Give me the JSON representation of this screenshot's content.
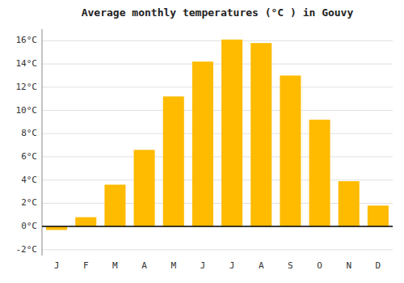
{
  "chart_data": {
    "type": "bar",
    "title": "Average monthly temperatures (°C ) in Gouvy",
    "categories": [
      "J",
      "F",
      "M",
      "A",
      "M",
      "J",
      "J",
      "A",
      "S",
      "O",
      "N",
      "D"
    ],
    "values": [
      -0.3,
      0.8,
      3.6,
      6.6,
      11.2,
      14.2,
      16.1,
      15.8,
      13.0,
      9.2,
      3.9,
      1.8
    ],
    "color": "#FFBB00",
    "ylim": [
      -2.5,
      17
    ],
    "yticks": [
      {
        "value": -2,
        "label": "-2°C"
      },
      {
        "value": 0,
        "label": "0°C"
      },
      {
        "value": 2,
        "label": "2°C"
      },
      {
        "value": 4,
        "label": "4°C"
      },
      {
        "value": 6,
        "label": "6°C"
      },
      {
        "value": 8,
        "label": "8°C"
      },
      {
        "value": 10,
        "label": "10°C"
      },
      {
        "value": 12,
        "label": "12°C"
      },
      {
        "value": 14,
        "label": "14°C"
      },
      {
        "value": 16,
        "label": "16°C"
      }
    ],
    "grid": true
  }
}
